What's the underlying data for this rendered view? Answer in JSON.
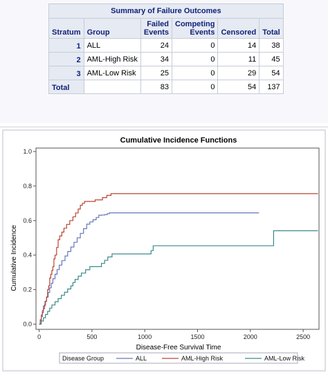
{
  "table": {
    "title": "Summary of Failure Outcomes",
    "headers": [
      "Stratum",
      "Group",
      "Failed Events",
      "Competing Events",
      "Censored",
      "Total"
    ],
    "header_lines": [
      [
        "Stratum"
      ],
      [
        "Group"
      ],
      [
        "Failed",
        "Events"
      ],
      [
        "Competing",
        "Events"
      ],
      [
        "Censored"
      ],
      [
        "Total"
      ]
    ],
    "rows": [
      {
        "stratum": "1",
        "group": "ALL",
        "failed": "24",
        "competing": "0",
        "censored": "14",
        "total": "38"
      },
      {
        "stratum": "2",
        "group": "AML-High Risk",
        "failed": "34",
        "competing": "0",
        "censored": "11",
        "total": "45"
      },
      {
        "stratum": "3",
        "group": "AML-Low Risk",
        "failed": "25",
        "competing": "0",
        "censored": "29",
        "total": "54"
      }
    ],
    "total_row": {
      "label": "Total",
      "group": "",
      "failed": "83",
      "competing": "0",
      "censored": "54",
      "total": "137"
    }
  },
  "chart_data": {
    "type": "line",
    "title": "Cumulative Incidence Functions",
    "xlabel": "Disease-Free Survival Time",
    "ylabel": "Cumulative Incidence",
    "xlim": [
      -30,
      2650
    ],
    "ylim": [
      -0.03,
      1.02
    ],
    "xticks": [
      0,
      500,
      1000,
      1500,
      2000,
      2500
    ],
    "yticks": [
      0.0,
      0.2,
      0.4,
      0.6,
      0.8,
      1.0
    ],
    "xtick_labels": [
      "0",
      "500",
      "1000",
      "1500",
      "2000",
      "2500"
    ],
    "ytick_labels": [
      "0.0",
      "0.2",
      "0.4",
      "0.6",
      "0.8",
      "1.0"
    ],
    "grid": false,
    "legend_title": "Disease Group",
    "legend_position": "bottom",
    "step": true,
    "series": [
      {
        "name": "ALL",
        "color": "#6677b8",
        "x": [
          0,
          10,
          20,
          30,
          40,
          55,
          70,
          85,
          100,
          115,
          130,
          150,
          170,
          190,
          215,
          245,
          270,
          300,
          330,
          360,
          390,
          420,
          450,
          480,
          510,
          540,
          565,
          590,
          620,
          645,
          665,
          2081
        ],
        "y": [
          0,
          0.026,
          0.053,
          0.079,
          0.105,
          0.132,
          0.158,
          0.184,
          0.211,
          0.237,
          0.263,
          0.289,
          0.316,
          0.342,
          0.368,
          0.395,
          0.421,
          0.447,
          0.474,
          0.5,
          0.526,
          0.553,
          0.579,
          0.592,
          0.605,
          0.618,
          0.631,
          0.632,
          0.635,
          0.64,
          0.645,
          0.645
        ]
      },
      {
        "name": "AML-High Risk",
        "color": "#bb4433",
        "x": [
          0,
          10,
          20,
          30,
          40,
          50,
          60,
          70,
          80,
          90,
          100,
          110,
          120,
          130,
          140,
          150,
          165,
          180,
          195,
          215,
          235,
          260,
          290,
          320,
          345,
          370,
          390,
          410,
          430,
          450,
          470,
          500,
          530,
          560,
          600,
          640,
          680,
          2640
        ],
        "y": [
          0,
          0.022,
          0.044,
          0.067,
          0.089,
          0.111,
          0.133,
          0.156,
          0.2,
          0.222,
          0.267,
          0.289,
          0.311,
          0.333,
          0.378,
          0.4,
          0.444,
          0.489,
          0.511,
          0.533,
          0.556,
          0.578,
          0.6,
          0.622,
          0.644,
          0.667,
          0.689,
          0.7,
          0.711,
          0.711,
          0.711,
          0.711,
          0.72,
          0.72,
          0.733,
          0.746,
          0.756,
          0.756
        ]
      },
      {
        "name": "AML-Low Risk",
        "color": "#3a8a8a",
        "x": [
          0,
          20,
          40,
          60,
          80,
          100,
          120,
          150,
          180,
          210,
          240,
          270,
          300,
          320,
          340,
          370,
          400,
          440,
          480,
          520,
          560,
          590,
          620,
          650,
          690,
          1060,
          1080,
          2200,
          2220,
          2640
        ],
        "y": [
          0,
          0.018,
          0.037,
          0.056,
          0.074,
          0.093,
          0.111,
          0.13,
          0.148,
          0.167,
          0.185,
          0.204,
          0.222,
          0.241,
          0.259,
          0.278,
          0.296,
          0.315,
          0.333,
          0.333,
          0.333,
          0.352,
          0.37,
          0.389,
          0.407,
          0.426,
          0.454,
          0.454,
          0.541,
          0.541
        ]
      }
    ]
  }
}
